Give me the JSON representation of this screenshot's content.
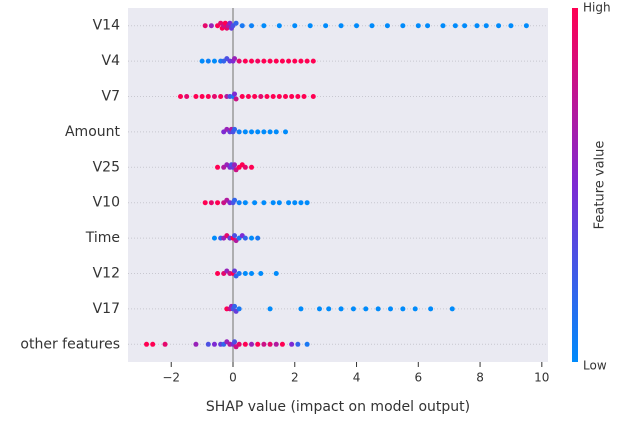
{
  "chart_data": {
    "type": "beeswarm",
    "xlabel": "SHAP value (impact on model output)",
    "xlim": [
      -3.4,
      10.2
    ],
    "xticks": [
      {
        "value": -2,
        "label": "−2"
      },
      0,
      2,
      4,
      6,
      8,
      10
    ],
    "grid": true,
    "zero_line": true,
    "colorbar": {
      "label": "Feature value",
      "high": "High",
      "low": "Low",
      "low_color": "#008bfb",
      "mid_color": "#7e2ad3",
      "high_color": "#ff0052"
    },
    "series": [
      {
        "name": "V14",
        "shap": [
          -0.9,
          -0.7,
          -0.5,
          -0.4,
          -0.35,
          -0.3,
          -0.25,
          -0.2,
          -0.15,
          -0.1,
          -0.05,
          0,
          0.1,
          0.3,
          0.6,
          1,
          1.5,
          2,
          2.5,
          3,
          3.5,
          4,
          4.5,
          5,
          5.5,
          6,
          6.3,
          6.8,
          7.2,
          7.5,
          7.9,
          8.2,
          8.6,
          9,
          9.5
        ],
        "feature_value": [
          0.9,
          0.6,
          1,
          0.9,
          1,
          0.8,
          1,
          0.9,
          0.7,
          0.5,
          0.4,
          0.3,
          0.2,
          0.1,
          0.05,
          0,
          0,
          0,
          0,
          0,
          0,
          0,
          0,
          0,
          0,
          0,
          0,
          0,
          0,
          0,
          0,
          0,
          0,
          0,
          0
        ]
      },
      {
        "name": "V4",
        "shap": [
          -1,
          -0.8,
          -0.6,
          -0.4,
          -0.3,
          -0.2,
          -0.1,
          0,
          0.05,
          0.2,
          0.4,
          0.6,
          0.8,
          1,
          1.2,
          1.4,
          1.6,
          1.8,
          2,
          2.2,
          2.4,
          2.6
        ],
        "feature_value": [
          0,
          0.05,
          0,
          0.1,
          0.2,
          0.3,
          0.4,
          0.5,
          0.6,
          0.9,
          1,
          1,
          0.95,
          1,
          1,
          1,
          1,
          1,
          1,
          1,
          1,
          1
        ]
      },
      {
        "name": "V7",
        "shap": [
          -1.7,
          -1.5,
          -1.2,
          -1,
          -0.8,
          -0.6,
          -0.4,
          -0.2,
          -0.1,
          0,
          0.05,
          0.1,
          0.3,
          0.5,
          0.7,
          0.9,
          1.1,
          1.3,
          1.5,
          1.7,
          1.9,
          2.1,
          2.3,
          2.6
        ],
        "feature_value": [
          1,
          0.9,
          1,
          1,
          1,
          0.9,
          1,
          0.7,
          0.3,
          0.1,
          0.5,
          0.8,
          1,
          1,
          1,
          0.9,
          1,
          1,
          1,
          1,
          1,
          1,
          1,
          1
        ]
      },
      {
        "name": "Amount",
        "shap": [
          -0.3,
          -0.2,
          -0.1,
          -0.05,
          0,
          0.05,
          0.2,
          0.4,
          0.6,
          0.8,
          1,
          1.2,
          1.4,
          1.7
        ],
        "feature_value": [
          0.5,
          0.6,
          0.4,
          0.7,
          0.3,
          0.2,
          0.05,
          0,
          0,
          0,
          0,
          0,
          0,
          0
        ]
      },
      {
        "name": "V25",
        "shap": [
          -0.5,
          -0.3,
          -0.2,
          -0.1,
          -0.05,
          0,
          0.05,
          0.1,
          0.2,
          0.3,
          0.4,
          0.6
        ],
        "feature_value": [
          1,
          0.7,
          0.6,
          0.5,
          0.3,
          0.4,
          0.6,
          0.8,
          1,
          1,
          0.9,
          1
        ]
      },
      {
        "name": "V10",
        "shap": [
          -0.9,
          -0.7,
          -0.5,
          -0.3,
          -0.2,
          -0.1,
          0,
          0.05,
          0.2,
          0.4,
          0.7,
          1,
          1.3,
          1.5,
          1.8,
          2,
          2.2,
          2.4
        ],
        "feature_value": [
          1,
          0.9,
          1,
          0.8,
          0.7,
          0.5,
          0.3,
          0.2,
          0.05,
          0,
          0,
          0,
          0,
          0,
          0,
          0,
          0,
          0
        ]
      },
      {
        "name": "Time",
        "shap": [
          -0.6,
          -0.4,
          -0.3,
          -0.2,
          -0.1,
          0,
          0.05,
          0.1,
          0.2,
          0.3,
          0.4,
          0.6,
          0.8
        ],
        "feature_value": [
          0,
          0.2,
          0.6,
          0.9,
          0.4,
          1,
          0.3,
          0.7,
          0.1,
          0.5,
          0.2,
          0,
          0.1
        ]
      },
      {
        "name": "V12",
        "shap": [
          -0.5,
          -0.3,
          -0.2,
          -0.1,
          0,
          0.05,
          0.1,
          0.2,
          0.4,
          0.6,
          0.9,
          1.4
        ],
        "feature_value": [
          1,
          0.9,
          0.6,
          0.8,
          1,
          0.4,
          0.2,
          0.1,
          0,
          0,
          0,
          0
        ]
      },
      {
        "name": "V17",
        "shap": [
          -0.2,
          -0.1,
          -0.05,
          0,
          0.05,
          0.1,
          0.2,
          1.2,
          2.2,
          2.8,
          3.1,
          3.5,
          3.9,
          4.3,
          4.7,
          5.1,
          5.5,
          5.9,
          6.4,
          7.1
        ],
        "feature_value": [
          1,
          0.8,
          0.6,
          0.3,
          0.2,
          0.4,
          0.1,
          0,
          0,
          0,
          0,
          0,
          0,
          0,
          0,
          0,
          0,
          0,
          0,
          0
        ]
      },
      {
        "name": "other features",
        "shap": [
          -2.8,
          -2.6,
          -2.2,
          -1.2,
          -0.8,
          -0.6,
          -0.4,
          -0.3,
          -0.2,
          -0.1,
          0,
          0.05,
          0.1,
          0.2,
          0.4,
          0.6,
          0.8,
          1,
          1.2,
          1.4,
          1.6,
          1.9,
          2.1,
          2.4
        ],
        "feature_value": [
          1,
          1,
          0.9,
          0.6,
          0.3,
          0.5,
          0.4,
          0.2,
          0.6,
          0.7,
          0.5,
          0.3,
          0.8,
          0.9,
          1,
          0.6,
          1,
          0.8,
          0.9,
          0.7,
          1,
          0.5,
          0.2,
          0.1
        ]
      }
    ]
  }
}
